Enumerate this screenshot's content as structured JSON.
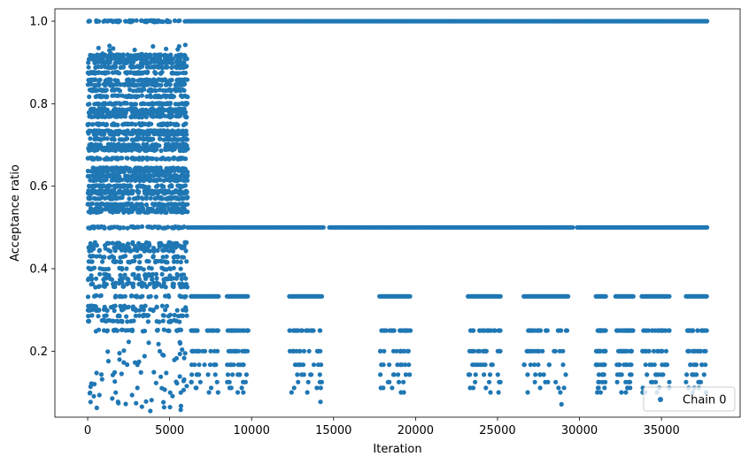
{
  "chart_data": {
    "type": "scatter",
    "title": "",
    "xlabel": "Iteration",
    "ylabel": "Acceptance ratio",
    "xlim": [
      -2000,
      39800
    ],
    "ylim": [
      0.04,
      1.03
    ],
    "xticks": [
      0,
      5000,
      10000,
      15000,
      20000,
      25000,
      30000,
      35000
    ],
    "xtick_labels": [
      "0",
      "5000",
      "10000",
      "15000",
      "20000",
      "25000",
      "30000",
      "35000"
    ],
    "yticks": [
      0.2,
      0.4,
      0.6,
      0.8,
      1.0
    ],
    "ytick_labels": [
      "0.2",
      "0.4",
      "0.6",
      "0.8",
      "1.0"
    ],
    "grid": false,
    "legend_position": "lower-right",
    "colors": {
      "series": "#1f77b4",
      "axes": "#000000",
      "legend_border": "#cccccc"
    },
    "series": [
      {
        "name": "Chain 0",
        "marker": "circle",
        "x_range": [
          0,
          37800
        ],
        "segments": [
          {
            "note_range": [
              0,
              6100
            ],
            "dense_levels": [
              1.0,
              0.917,
              0.909,
              0.9,
              0.889,
              0.875,
              0.857,
              0.846,
              0.833,
              0.818,
              0.8,
              0.786,
              0.778,
              0.769,
              0.75,
              0.733,
              0.727,
              0.714,
              0.7,
              0.692,
              0.688,
              0.667,
              0.643,
              0.636,
              0.625,
              0.615,
              0.6,
              0.588,
              0.583,
              0.571,
              0.556,
              0.545,
              0.538,
              0.5,
              0.462,
              0.455,
              0.45,
              0.444,
              0.429,
              0.417,
              0.4,
              0.385,
              0.375,
              0.364,
              0.357,
              0.333,
              0.308,
              0.3,
              0.286,
              0.273,
              0.25
            ],
            "scattered_values": [
              0.94,
              0.93,
              0.92,
              0.22,
              0.2,
              0.19,
              0.18,
              0.17,
              0.15,
              0.14,
              0.13,
              0.12,
              0.11,
              0.1,
              0.09,
              0.08,
              0.07,
              0.06
            ]
          },
          {
            "note_range": [
              6100,
              37800
            ],
            "dense_levels": [
              1.0,
              0.5,
              0.333
            ],
            "sparse_levels": [
              0.25,
              0.2,
              0.167,
              0.143,
              0.125,
              0.111,
              0.1
            ],
            "bursts_x": [
              [
                6300,
                8000
              ],
              [
                8500,
                9800
              ],
              [
                12300,
                14300
              ],
              [
                17800,
                19700
              ],
              [
                23200,
                25200
              ],
              [
                26600,
                29300
              ],
              [
                31000,
                31600
              ],
              [
                32200,
                33300
              ],
              [
                33800,
                35500
              ],
              [
                36500,
                37800
              ]
            ],
            "isolated_points": [
              [
                14200,
                0.077
              ],
              [
                28900,
                0.071
              ],
              [
                34000,
                0.1
              ],
              [
                37600,
                0.143
              ]
            ]
          }
        ]
      }
    ]
  }
}
